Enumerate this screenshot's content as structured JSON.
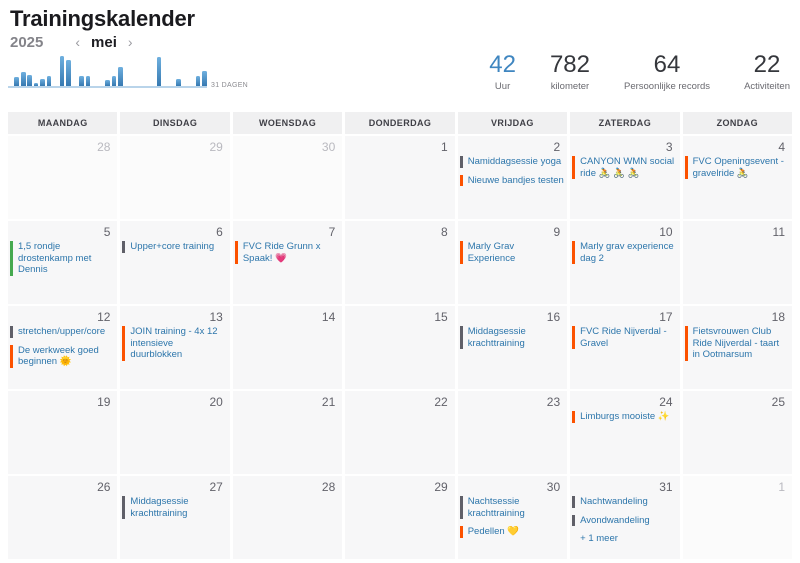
{
  "header": {
    "title": "Trainingskalender",
    "year": "2025",
    "month": "mei",
    "prev_icon": "‹",
    "next_icon": "›",
    "days_label": "31 DAGEN"
  },
  "stats": [
    {
      "value": "42",
      "label": "Uur",
      "highlight": true
    },
    {
      "value": "782",
      "label": "kilometer",
      "highlight": false
    },
    {
      "value": "64",
      "label": "Persoonlijke records",
      "highlight": false
    },
    {
      "value": "22",
      "label": "Activiteiten",
      "highlight": false
    }
  ],
  "chart_data": {
    "type": "bar",
    "title": "Dagelijkse trainingsduur mei 2025",
    "x": [
      1,
      2,
      3,
      4,
      5,
      6,
      7,
      8,
      9,
      10,
      11,
      12,
      13,
      14,
      15,
      16,
      17,
      18,
      19,
      20,
      21,
      22,
      23,
      24,
      25,
      26,
      27,
      28,
      29,
      30,
      31
    ],
    "values": [
      0,
      1.6,
      2.6,
      2.0,
      0.6,
      1.4,
      1.8,
      0,
      5.6,
      4.8,
      0,
      1.8,
      1.8,
      0,
      0,
      1.2,
      1.8,
      3.6,
      0,
      0,
      0,
      0,
      0,
      5.4,
      0,
      0,
      1.4,
      0,
      0,
      1.8,
      2.8
    ],
    "xlabel": "31 DAGEN",
    "ylabel": "",
    "ylim": [
      0,
      6
    ],
    "grid": false,
    "legend": "none",
    "bar_color": "#3f86c0"
  },
  "calendar": {
    "weekdays": [
      "MAANDAG",
      "DINSDAG",
      "WOENSDAG",
      "DONDERDAG",
      "VRIJDAG",
      "ZATERDAG",
      "ZONDAG"
    ],
    "weeks": [
      [
        {
          "date": "28",
          "out_of_month": true,
          "events": []
        },
        {
          "date": "29",
          "out_of_month": true,
          "events": []
        },
        {
          "date": "30",
          "out_of_month": true,
          "events": []
        },
        {
          "date": "1",
          "out_of_month": false,
          "events": []
        },
        {
          "date": "2",
          "out_of_month": false,
          "events": [
            {
              "title": "Namiddagsessie yoga",
              "color": "gray"
            },
            {
              "title": "Nieuwe bandjes testen",
              "color": "orange"
            }
          ]
        },
        {
          "date": "3",
          "out_of_month": false,
          "events": [
            {
              "title": "CANYON WMN social ride 🚴 🚴 🚴",
              "color": "orange"
            }
          ]
        },
        {
          "date": "4",
          "out_of_month": false,
          "events": [
            {
              "title": "FVC Openingsevent - gravelride 🚴",
              "color": "orange"
            }
          ]
        }
      ],
      [
        {
          "date": "5",
          "out_of_month": false,
          "events": [
            {
              "title": "1,5 rondje drostenkamp met Dennis",
              "color": "green"
            }
          ]
        },
        {
          "date": "6",
          "out_of_month": false,
          "events": [
            {
              "title": "Upper+core training",
              "color": "gray"
            }
          ]
        },
        {
          "date": "7",
          "out_of_month": false,
          "events": [
            {
              "title": "FVC Ride Grunn x Spaak! 💗",
              "color": "orange"
            }
          ]
        },
        {
          "date": "8",
          "out_of_month": false,
          "events": []
        },
        {
          "date": "9",
          "out_of_month": false,
          "events": [
            {
              "title": "Marly Grav Experience",
              "color": "orange"
            }
          ]
        },
        {
          "date": "10",
          "out_of_month": false,
          "events": [
            {
              "title": "Marly grav experience dag 2",
              "color": "orange"
            }
          ]
        },
        {
          "date": "11",
          "out_of_month": false,
          "events": []
        }
      ],
      [
        {
          "date": "12",
          "out_of_month": false,
          "events": [
            {
              "title": "stretchen/upper/core",
              "color": "gray"
            },
            {
              "title": "De werkweek goed beginnen 🌞",
              "color": "orange"
            }
          ]
        },
        {
          "date": "13",
          "out_of_month": false,
          "events": [
            {
              "title": "JOIN training - 4x 12 intensieve duurblokken",
              "color": "orange"
            }
          ]
        },
        {
          "date": "14",
          "out_of_month": false,
          "events": []
        },
        {
          "date": "15",
          "out_of_month": false,
          "events": []
        },
        {
          "date": "16",
          "out_of_month": false,
          "events": [
            {
              "title": "Middagsessie krachttraining",
              "color": "gray"
            }
          ]
        },
        {
          "date": "17",
          "out_of_month": false,
          "events": [
            {
              "title": "FVC Ride Nijverdal - Gravel",
              "color": "orange"
            }
          ]
        },
        {
          "date": "18",
          "out_of_month": false,
          "events": [
            {
              "title": "Fietsvrouwen Club Ride Nijverdal - taart in Ootmarsum",
              "color": "orange"
            }
          ]
        }
      ],
      [
        {
          "date": "19",
          "out_of_month": false,
          "events": []
        },
        {
          "date": "20",
          "out_of_month": false,
          "events": []
        },
        {
          "date": "21",
          "out_of_month": false,
          "events": []
        },
        {
          "date": "22",
          "out_of_month": false,
          "events": []
        },
        {
          "date": "23",
          "out_of_month": false,
          "events": []
        },
        {
          "date": "24",
          "out_of_month": false,
          "events": [
            {
              "title": "Limburgs mooiste ✨",
              "color": "orange"
            }
          ]
        },
        {
          "date": "25",
          "out_of_month": false,
          "events": []
        }
      ],
      [
        {
          "date": "26",
          "out_of_month": false,
          "events": []
        },
        {
          "date": "27",
          "out_of_month": false,
          "events": [
            {
              "title": "Middagsessie krachttraining",
              "color": "gray"
            }
          ]
        },
        {
          "date": "28",
          "out_of_month": false,
          "events": []
        },
        {
          "date": "29",
          "out_of_month": false,
          "events": []
        },
        {
          "date": "30",
          "out_of_month": false,
          "events": [
            {
              "title": "Nachtsessie krachttraining",
              "color": "gray"
            },
            {
              "title": "Pedellen 💛",
              "color": "orange"
            }
          ]
        },
        {
          "date": "31",
          "out_of_month": false,
          "events": [
            {
              "title": "Nachtwandeling",
              "color": "gray"
            },
            {
              "title": "Avondwandeling",
              "color": "gray"
            },
            {
              "title": "+ 1 meer",
              "color": "none"
            }
          ]
        },
        {
          "date": "1",
          "out_of_month": true,
          "events": []
        }
      ]
    ]
  },
  "colors": {
    "accent_blue": "#3f86c0",
    "event_text_blue": "#2d76ab",
    "event_border_orange": "#fc5200",
    "event_border_gray": "#5f5f68",
    "event_border_green": "#46a94f",
    "bar_gradient_top": "#6fb0df",
    "bar_gradient_bottom": "#3679b1"
  }
}
